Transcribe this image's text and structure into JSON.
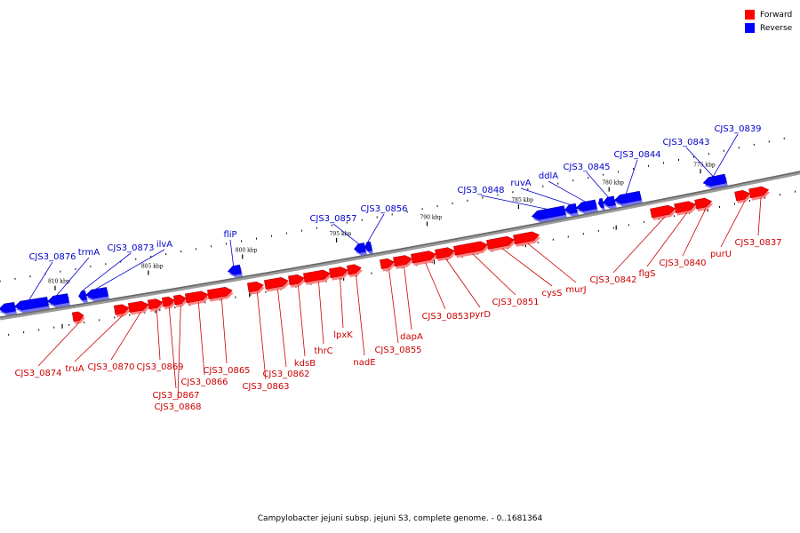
{
  "colors": {
    "forward": "#ff0000",
    "reverse": "#0000ff",
    "forward_label": "#cc0000",
    "reverse_label": "#0000cc"
  },
  "legend": [
    {
      "label": "Forward",
      "color": "#ff0000"
    },
    {
      "label": "Reverse",
      "color": "#0000ff"
    }
  ],
  "caption": "Campylobacter jejuni subsp. jejuni S3, complete genome. - 0..1681364",
  "scale_marks": [
    "810 kbp",
    "805 kbp",
    "800 kbp",
    "795 kbp",
    "790 kbp",
    "785 kbp",
    "780 kbp",
    "775 kbp"
  ],
  "forward_genes": [
    "CJS3_0874",
    "truA",
    "CJS3_0870",
    "CJS3_0869",
    "CJS3_0867",
    "CJS3_0868",
    "CJS3_0866",
    "CJS3_0865",
    "CJS3_0863",
    "CJS3_0862",
    "kdsB",
    "thrC",
    "lpxK",
    "nadE",
    "CJS3_0855",
    "dapA",
    "CJS3_0853",
    "pyrD",
    "CJS3_0851",
    "cysS",
    "murJ",
    "CJS3_0842",
    "flgS",
    "CJS3_0840",
    "purU",
    "CJS3_0837"
  ],
  "reverse_genes": [
    "CJS3_0876",
    "trmA",
    "CJS3_0873",
    "ilvA",
    "fliP",
    "CJS3_0857",
    "CJS3_0856",
    "CJS3_0848",
    "ruvA",
    "ddlA",
    "CJS3_0845",
    "CJS3_0844",
    "CJS3_0843",
    "CJS3_0839"
  ]
}
